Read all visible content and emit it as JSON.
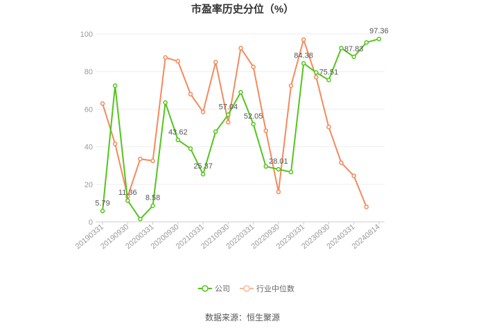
{
  "chart_data": {
    "type": "line",
    "title": "市盈率历史分位（%）",
    "source": "数据来源：恒生聚源",
    "ylim": [
      0,
      100
    ],
    "yticks": [
      "0",
      "20",
      "40",
      "60",
      "80",
      "100"
    ],
    "grid": true,
    "legend_position": "bottom",
    "x": [
      "20190331",
      "20190630",
      "20190930",
      "20191231",
      "20200331",
      "20200630",
      "20200930",
      "20201231",
      "20210331",
      "20210630",
      "20210930",
      "20211231",
      "20220331",
      "20220630",
      "20220930",
      "20221231",
      "20230331",
      "20230630",
      "20230930",
      "20231231",
      "20240331",
      "20240630",
      "20240814"
    ],
    "xtick_labels": [
      "20190331",
      "20190930",
      "20200331",
      "20200930",
      "20210331",
      "20210930",
      "20220331",
      "20220930",
      "20230331",
      "20230930",
      "20240331",
      "20240814"
    ],
    "series": [
      {
        "name": "公司",
        "color": "#52c41a",
        "values": [
          5.79,
          72.5,
          11.36,
          1.5,
          8.58,
          63.5,
          43.62,
          39.0,
          25.37,
          48.0,
          57.04,
          69.0,
          52.05,
          29.5,
          28.01,
          26.5,
          84.38,
          79.5,
          75.51,
          92.5,
          87.83,
          95.5,
          97.36
        ],
        "labels": [
          "5.79",
          "",
          "11.36",
          "",
          "8.58",
          "",
          "43.62",
          "",
          "25.37",
          "",
          "57.04",
          "",
          "52.05",
          "",
          "28.01",
          "",
          "84.38",
          "",
          "75.51",
          "",
          "87.83",
          "",
          "97.36"
        ]
      },
      {
        "name": "行业中位数",
        "color": "#f5895a",
        "values": [
          63.0,
          41.5,
          13.5,
          33.5,
          32.5,
          87.5,
          85.5,
          68.0,
          58.5,
          85.0,
          53.0,
          92.5,
          82.5,
          48.5,
          16.0,
          72.5,
          97.0,
          77.0,
          50.5,
          31.5,
          24.5,
          8.0,
          null
        ]
      }
    ]
  }
}
